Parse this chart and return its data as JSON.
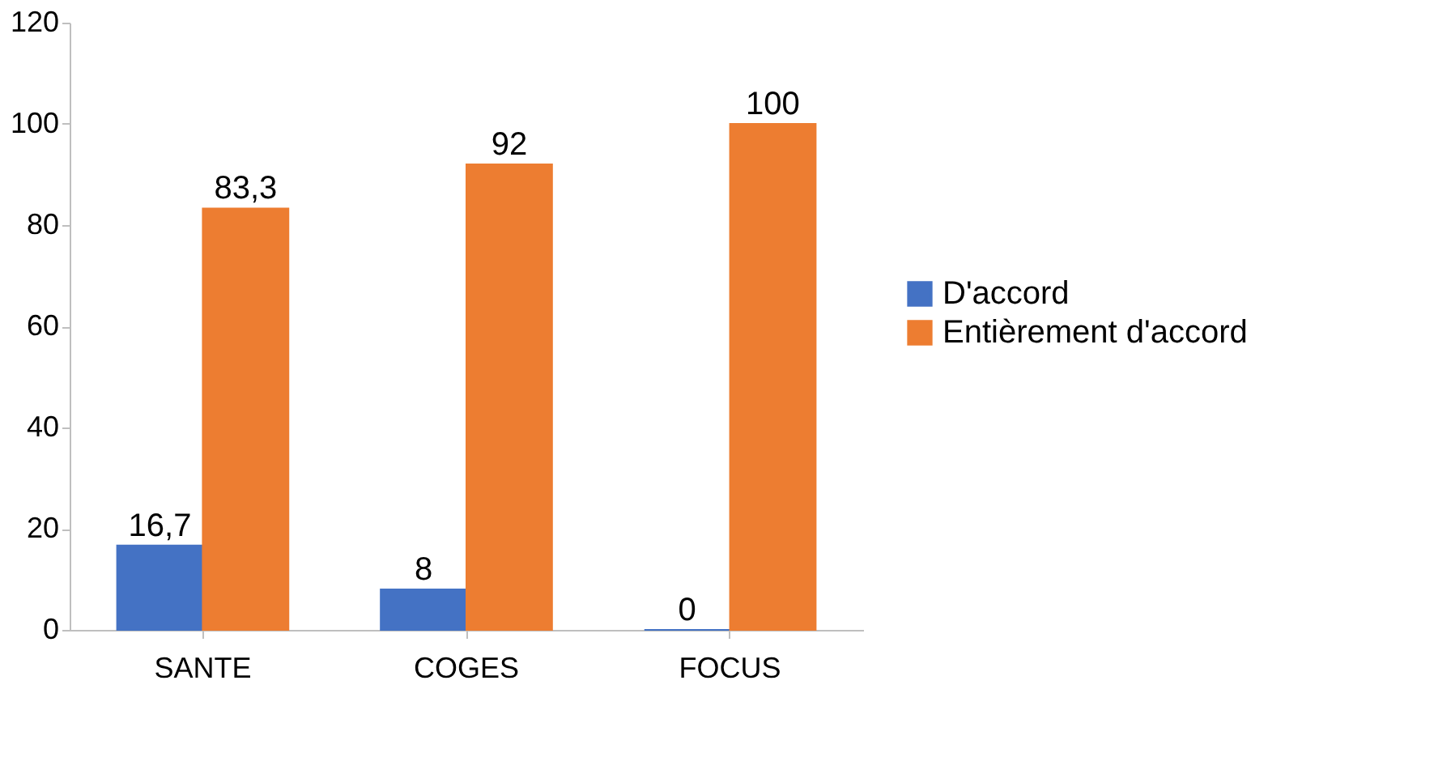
{
  "chart_data": {
    "type": "bar",
    "categories": [
      "SANTE",
      "COGES",
      "FOCUS"
    ],
    "series": [
      {
        "name": "D'accord",
        "color": "#4472c4",
        "values": [
          16.7,
          8,
          0
        ],
        "value_labels": [
          "16,7",
          "8",
          "0"
        ]
      },
      {
        "name": "Entièrement d'accord",
        "color": "#ed7d31",
        "values": [
          83.3,
          92,
          100
        ],
        "value_labels": [
          "83,3",
          "92",
          "100"
        ]
      }
    ],
    "ylim": [
      0,
      120
    ],
    "yticks": [
      0,
      20,
      40,
      60,
      80,
      100,
      120
    ],
    "grid": false,
    "legend": "right"
  }
}
